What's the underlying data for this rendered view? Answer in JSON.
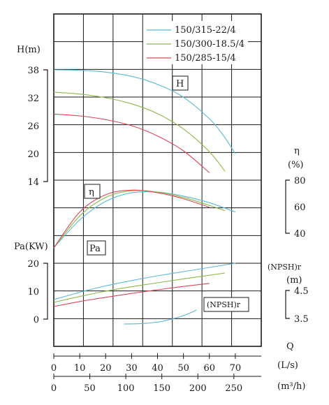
{
  "chart_data": {
    "type": "line",
    "series": [
      {
        "name": "150/315-22/4",
        "color": "#5bb8d6"
      },
      {
        "name": "150/300-18.5/4",
        "color": "#8cb84a"
      },
      {
        "name": "150/285-15/4",
        "color": "#d9485a"
      }
    ],
    "x_axis": {
      "label_primary": "Q",
      "unit_ls": "(L/s)",
      "unit_m3h": "(m³/h)",
      "ticks_ls": [
        "0",
        "10",
        "20",
        "30",
        "40",
        "50",
        "60",
        "70"
      ],
      "ticks_m3h": [
        "0",
        "50",
        "100",
        "150",
        "200",
        "250"
      ],
      "xlim_ls": [
        0,
        80
      ]
    },
    "head": {
      "label": "H(m)",
      "box_label": "H",
      "ticks": [
        "38",
        "32",
        "26",
        "20",
        "14"
      ],
      "ylim": [
        14,
        38
      ],
      "curves": [
        [
          [
            0,
            38
          ],
          [
            10,
            37.9
          ],
          [
            20,
            37.5
          ],
          [
            30,
            36.6
          ],
          [
            40,
            34.9
          ],
          [
            50,
            32.1
          ],
          [
            60,
            27.5
          ],
          [
            65,
            24.2
          ],
          [
            70,
            20.0
          ]
        ],
        [
          [
            0,
            33.2
          ],
          [
            10,
            32.8
          ],
          [
            20,
            32.0
          ],
          [
            30,
            30.7
          ],
          [
            40,
            28.6
          ],
          [
            50,
            25.3
          ],
          [
            60,
            20.4
          ],
          [
            66,
            16.2
          ]
        ],
        [
          [
            0,
            28.5
          ],
          [
            10,
            28.1
          ],
          [
            20,
            27.3
          ],
          [
            30,
            26.0
          ],
          [
            40,
            23.8
          ],
          [
            50,
            20.6
          ],
          [
            60,
            15.9
          ]
        ]
      ]
    },
    "efficiency": {
      "label": "η",
      "unit": "(%)",
      "box_label": "η",
      "ticks": [
        "80",
        "60",
        "40"
      ],
      "ylim": [
        40,
        80
      ],
      "curves": [
        [
          [
            0,
            29
          ],
          [
            10,
            50
          ],
          [
            20,
            64
          ],
          [
            30,
            70.5
          ],
          [
            40,
            71
          ],
          [
            50,
            68
          ],
          [
            60,
            63
          ],
          [
            70,
            56
          ]
        ],
        [
          [
            0,
            29
          ],
          [
            10,
            53
          ],
          [
            20,
            67
          ],
          [
            30,
            72
          ],
          [
            40,
            71
          ],
          [
            50,
            67
          ],
          [
            60,
            61
          ],
          [
            66,
            57
          ]
        ],
        [
          [
            0,
            29
          ],
          [
            10,
            56
          ],
          [
            20,
            69
          ],
          [
            30,
            72.5
          ],
          [
            40,
            70.5
          ],
          [
            50,
            66
          ],
          [
            60,
            59.5
          ]
        ]
      ]
    },
    "power": {
      "label": "Pa(KW)",
      "box_label": "Pa",
      "ticks": [
        "20",
        "10",
        "0"
      ],
      "ylim": [
        0,
        20
      ],
      "curves": [
        [
          [
            0,
            7
          ],
          [
            10,
            9.6
          ],
          [
            20,
            11.9
          ],
          [
            30,
            13.8
          ],
          [
            40,
            15.5
          ],
          [
            50,
            17
          ],
          [
            60,
            18.5
          ],
          [
            70,
            20
          ]
        ],
        [
          [
            0,
            6
          ],
          [
            10,
            8.1
          ],
          [
            20,
            10
          ],
          [
            30,
            11.6
          ],
          [
            40,
            13
          ],
          [
            50,
            14.4
          ],
          [
            60,
            15.7
          ],
          [
            66,
            16.5
          ]
        ],
        [
          [
            0,
            4.5
          ],
          [
            10,
            6.3
          ],
          [
            20,
            7.8
          ],
          [
            30,
            9.2
          ],
          [
            40,
            10.5
          ],
          [
            50,
            11.7
          ],
          [
            60,
            12.8
          ]
        ]
      ]
    },
    "npsh": {
      "label": "(NPSH)r",
      "unit": "(m)",
      "box_label": "(NPSH)r",
      "ticks": [
        "4.5",
        "3.5"
      ],
      "ylim": [
        3.5,
        4.5
      ],
      "curve": [
        [
          27,
          3.3
        ],
        [
          35,
          3.32
        ],
        [
          42,
          3.4
        ],
        [
          50,
          3.6
        ],
        [
          55,
          3.8
        ]
      ]
    }
  }
}
